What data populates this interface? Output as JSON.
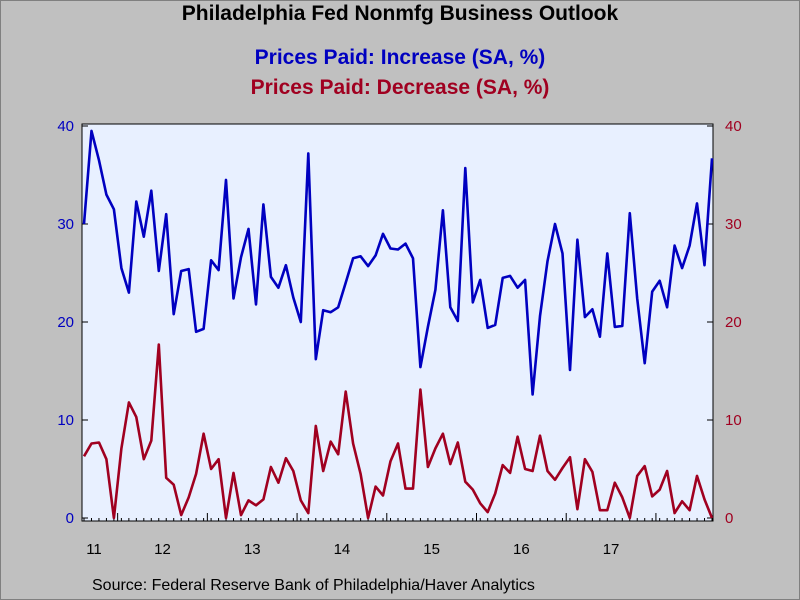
{
  "chart_data": {
    "type": "line",
    "title": "Philadelphia Fed Nonmfg Business Outlook",
    "series": [
      {
        "name": "Prices Paid: Increase (SA, %)",
        "color": "#0000c0",
        "axis": "left",
        "values": [
          30.0,
          39.5,
          36.5,
          33.0,
          31.5,
          25.5,
          23.0,
          32.3,
          28.7,
          33.4,
          25.2,
          31.0,
          20.8,
          25.2,
          25.4,
          19.0,
          19.3,
          26.3,
          25.3,
          34.5,
          22.4,
          26.6,
          29.5,
          21.8,
          32.0,
          24.6,
          23.5,
          25.8,
          22.5,
          20.0,
          37.2,
          16.2,
          21.2,
          21.0,
          21.5,
          24.0,
          26.5,
          26.7,
          25.7,
          26.8,
          29.0,
          27.5,
          27.4,
          28.0,
          26.5,
          15.4,
          19.5,
          23.3,
          31.4,
          21.5,
          20.1,
          35.7,
          22.0,
          24.3,
          19.4,
          19.7,
          24.5,
          24.7,
          23.5,
          24.3,
          12.6,
          20.6,
          26.2,
          30.0,
          27.0,
          15.1,
          28.4,
          20.5,
          21.3,
          18.5,
          27.0,
          19.5,
          19.6,
          31.1,
          22.4,
          15.8,
          23.1,
          24.2,
          21.5,
          27.8,
          25.5,
          27.8,
          32.1,
          25.8,
          36.7
        ]
      },
      {
        "name": "Prices Paid: Decrease (SA, %)",
        "color": "#a00020",
        "axis": "right",
        "values": [
          6.3,
          7.6,
          7.7,
          6.0,
          0.0,
          7.1,
          11.8,
          10.3,
          6.0,
          7.9,
          17.7,
          4.1,
          3.4,
          0.3,
          2.1,
          4.5,
          8.6,
          5.0,
          6.0,
          0.0,
          4.6,
          0.3,
          1.8,
          1.3,
          1.9,
          5.2,
          3.6,
          6.1,
          4.8,
          1.8,
          0.5,
          9.4,
          4.8,
          7.8,
          6.5,
          12.9,
          7.6,
          4.5,
          0.0,
          3.2,
          2.3,
          5.8,
          7.6,
          3.0,
          3.0,
          13.1,
          5.2,
          7.1,
          8.6,
          5.5,
          7.7,
          3.7,
          2.9,
          1.5,
          0.6,
          2.5,
          5.4,
          4.6,
          8.3,
          5.0,
          4.8,
          8.4,
          4.8,
          3.9,
          5.1,
          6.2,
          0.9,
          6.0,
          4.7,
          0.8,
          0.8,
          3.6,
          2.1,
          0.0,
          4.3,
          5.3,
          2.2,
          2.9,
          4.8,
          0.5,
          1.7,
          0.8,
          4.3,
          1.9,
          0.0
        ]
      }
    ],
    "x_tick_labels": [
      "11",
      "12",
      "13",
      "14",
      "15",
      "16",
      "17"
    ],
    "y_left": {
      "ticks": [
        "0",
        "10",
        "20",
        "30",
        "40"
      ],
      "ylim": [
        0,
        40
      ],
      "color": "#0000c0"
    },
    "y_right": {
      "ticks": [
        "0",
        "10",
        "20",
        "30",
        "40"
      ],
      "ylim": [
        0,
        40
      ],
      "color": "#a00020"
    },
    "grid": false,
    "legend": "none"
  },
  "subtitle1": "Prices Paid: Increase (SA, %)",
  "subtitle2": "Prices Paid: Decrease (SA, %)",
  "source": "Source:  Federal Reserve Bank of Philadelphia/Haver Analytics",
  "plot_background": "#e8f0ff"
}
